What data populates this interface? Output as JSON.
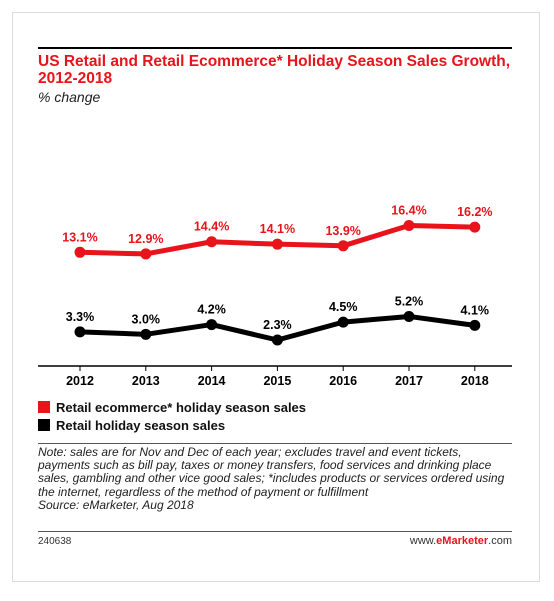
{
  "title": "US Retail and Retail Ecommerce* Holiday Season Sales Growth, 2012-2018",
  "subtitle": "% change",
  "chart_data": {
    "type": "line",
    "x": [
      "2012",
      "2013",
      "2014",
      "2015",
      "2016",
      "2017",
      "2018"
    ],
    "series": [
      {
        "name": "Retail ecommerce* holiday season sales",
        "color": "#e8131b",
        "values": [
          13.1,
          12.9,
          14.4,
          14.1,
          13.9,
          16.4,
          16.2
        ],
        "labels": [
          "13.1%",
          "12.9%",
          "14.4%",
          "14.1%",
          "13.9%",
          "16.4%",
          "16.2%"
        ]
      },
      {
        "name": "Retail holiday season sales",
        "color": "#000000",
        "values": [
          3.3,
          3.0,
          4.2,
          2.3,
          4.5,
          5.2,
          4.1
        ],
        "labels": [
          "3.3%",
          "3.0%",
          "4.2%",
          "2.3%",
          "4.5%",
          "5.2%",
          "4.1%"
        ]
      }
    ],
    "legend_position": "bottom",
    "grid": false
  },
  "legend": {
    "items": [
      {
        "label": "Retail ecommerce* holiday season sales",
        "color": "#e8131b"
      },
      {
        "label": "Retail holiday season sales",
        "color": "#000000"
      }
    ]
  },
  "note": {
    "text": "Note: sales are for Nov and Dec of each year; excludes travel and event tickets, payments such as bill pay, taxes or money transfers, food services and drinking place sales, gambling and other vice good sales; *includes products or services ordered using the internet, regardless of the method of payment or fulfillment",
    "source": "Source: eMarketer, Aug 2018"
  },
  "footer": {
    "chart_id": "240638",
    "brand_prefix": "www.",
    "brand_name": "eMarketer",
    "brand_suffix": ".com"
  }
}
